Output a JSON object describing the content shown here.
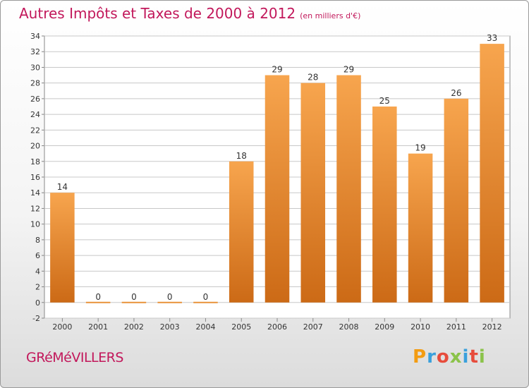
{
  "header": {
    "title": "Autres Impôts et Taxes de 2000 à 2012",
    "unit": "(en milliers d'€)"
  },
  "footer": {
    "commune": "GRéMéVILLERS",
    "logo": {
      "letters": [
        "P",
        "r",
        "o",
        "x",
        "i",
        "t",
        "i"
      ],
      "colors": [
        "#f39c12",
        "#3aa0dc",
        "#e74c3c",
        "#8bc34a",
        "#3aa0dc",
        "#e74c3c",
        "#8bc34a"
      ]
    }
  },
  "chart_data": {
    "type": "bar",
    "title": "Autres Impôts et Taxes de 2000 à 2012",
    "subtitle": "(en milliers d'€)",
    "categories": [
      "2000",
      "2001",
      "2002",
      "2003",
      "2004",
      "2005",
      "2006",
      "2007",
      "2008",
      "2009",
      "2010",
      "2011",
      "2012"
    ],
    "values": [
      14,
      0,
      0,
      0,
      0,
      18,
      29,
      28,
      29,
      25,
      19,
      26,
      33
    ],
    "data_labels": [
      "14",
      "0",
      "0",
      "0",
      "0",
      "18",
      "29",
      "28",
      "29",
      "25",
      "19",
      "26",
      "33"
    ],
    "ylim": [
      -2,
      34
    ],
    "yticks": [
      -2,
      0,
      2,
      4,
      6,
      8,
      10,
      12,
      14,
      16,
      18,
      20,
      22,
      24,
      26,
      28,
      30,
      32,
      34
    ],
    "grid": true,
    "legend": "none",
    "colors": {
      "bar_top": "#f7a54e",
      "bar_bottom": "#cc6a16",
      "zero_bar": "#e8933a",
      "title": "#c2185b",
      "grid": "#c8c8c8",
      "axis": "#888888"
    }
  }
}
